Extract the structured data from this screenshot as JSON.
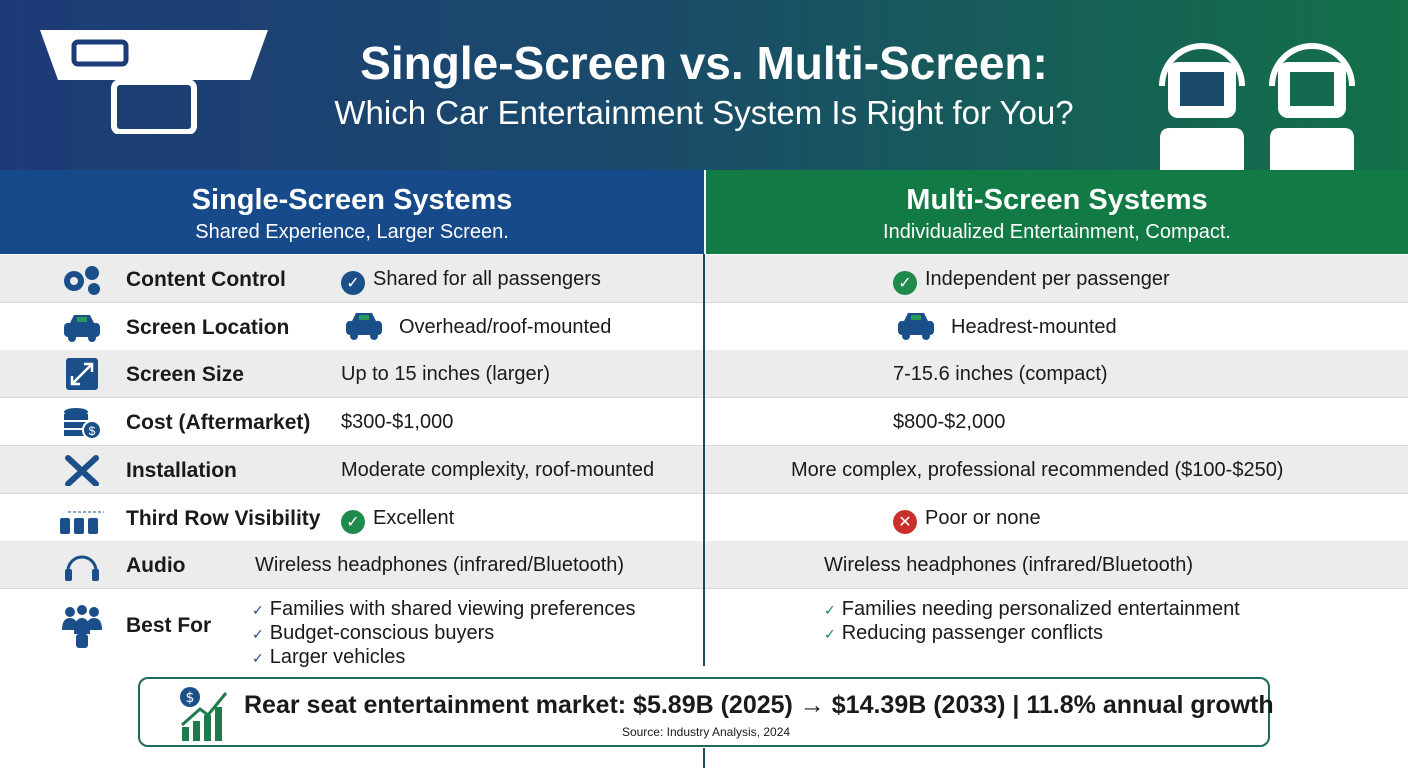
{
  "header": {
    "title": "Single-Screen vs. Multi-Screen:",
    "subtitle": "Which Car Entertainment System Is Right for You?"
  },
  "columns": {
    "single": {
      "title": "Single-Screen Systems",
      "subtitle": "Shared Experience, Larger Screen."
    },
    "multi": {
      "title": "Multi-Screen Systems",
      "subtitle": "Individualized Entertainment, Compact."
    }
  },
  "colors": {
    "blue": "#164a8a",
    "green": "#127a45",
    "check_blue": "#1b4f8a",
    "check_green": "#1f8a4c",
    "cross_red": "#c8302c"
  },
  "rows": [
    {
      "label": "Content Control",
      "icon": "gears-icon",
      "single": "Shared for all passengers",
      "single_mark": "check-blue",
      "multi": "Independent per passenger",
      "multi_mark": "check-green"
    },
    {
      "label": "Screen Location",
      "icon": "car-icon",
      "single": "Overhead/roof-mounted",
      "single_mark": "car",
      "multi": "Headrest-mounted",
      "multi_mark": "car"
    },
    {
      "label": "Screen Size",
      "icon": "resize-arrow-icon",
      "single": "Up to 15 inches (larger)",
      "multi": "7-15.6 inches (compact)"
    },
    {
      "label": "Cost (Aftermarket)",
      "icon": "coins-icon",
      "single": "$300-$1,000",
      "multi": "$800-$2,000"
    },
    {
      "label": "Installation",
      "icon": "tools-icon",
      "single": "Moderate complexity, roof-mounted",
      "multi": "More complex, professional recommended ($100-$250)"
    },
    {
      "label": "Third Row Visibility",
      "icon": "seats-icon",
      "single": "Excellent",
      "single_mark": "check-green",
      "multi": "Poor or none",
      "multi_mark": "cross"
    },
    {
      "label": "Audio",
      "icon": "headphones-icon",
      "single": "Wireless headphones (infrared/Bluetooth)",
      "multi": "Wireless headphones (infrared/Bluetooth)"
    }
  ],
  "best_for": {
    "label": "Best For",
    "icon": "people-icon",
    "single": [
      "Families with shared viewing preferences",
      "Budget-conscious buyers",
      "Larger vehicles"
    ],
    "multi": [
      "Families needing personalized entertainment",
      "Reducing passenger conflicts"
    ]
  },
  "footer": {
    "stat": "Rear seat entertainment market: $5.89B (2025) → $14.39B (2033) | 11.8% annual growth",
    "source": "Source: Industry Analysis, 2024",
    "icon": "growth-chart-icon"
  }
}
